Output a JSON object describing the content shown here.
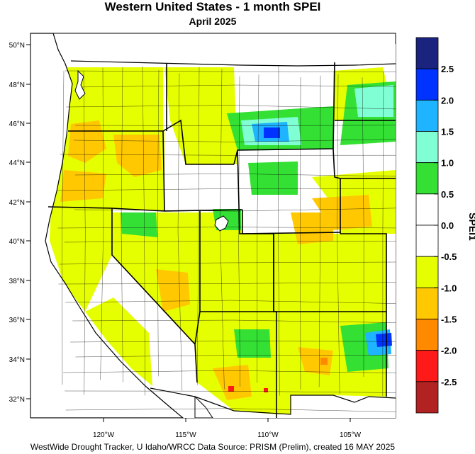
{
  "title": "Western United States - 1 month SPEI",
  "subtitle": "April 2025",
  "footer": "WestWide Drought Tracker, U Idaho/WRCC Data Source: PRISM (Prelim), created 16 MAY 2025",
  "map": {
    "lat_labels": [
      "50°N",
      "48°N",
      "46°N",
      "44°N",
      "42°N",
      "40°N",
      "38°N",
      "36°N",
      "34°N",
      "32°N"
    ],
    "lon_labels": [
      "120°W",
      "115°W",
      "110°W",
      "105°W"
    ]
  },
  "legend": {
    "label": "SPEI1",
    "tick_labels": [
      "2.5",
      "2.0",
      "1.5",
      "1.0",
      "0.5",
      "0.0",
      "-0.5",
      "-1.0",
      "-1.5",
      "-2.0",
      "-2.5"
    ],
    "colors": [
      "#1a237e",
      "#0033ff",
      "#1eb4ff",
      "#80ffd4",
      "#33e033",
      "#ffffff",
      "#ffffff",
      "#e6ff00",
      "#ffc800",
      "#ff8a00",
      "#ff1a1a",
      "#b22222"
    ]
  },
  "colors": {
    "yellow": "#e6ff00",
    "orange": "#ffc800",
    "dark_orange": "#ff8a00",
    "green": "#33e033",
    "cyan": "#1eb4ff",
    "aqua": "#80ffd4",
    "blue": "#0033ff",
    "red": "#ff1a1a"
  }
}
